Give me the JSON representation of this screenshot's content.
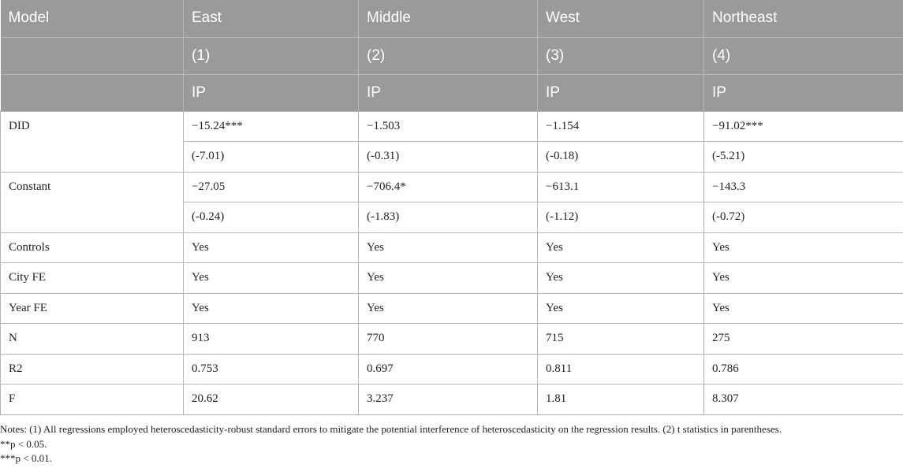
{
  "table": {
    "header_row1": [
      "Model",
      "East",
      "Middle",
      "West",
      "Northeast"
    ],
    "header_row2": [
      "(1)",
      "(2)",
      "(3)",
      "(4)"
    ],
    "header_row3": [
      "IP",
      "IP",
      "IP",
      "IP"
    ],
    "did": {
      "label": "DID",
      "coef": [
        "−15.24***",
        "−1.503",
        "−1.154",
        "−91.02***"
      ],
      "tstat": [
        "(-7.01)",
        "(-0.31)",
        "(-0.18)",
        "(-5.21)"
      ]
    },
    "constant": {
      "label": "Constant",
      "coef": [
        "−27.05",
        "−706.4*",
        "−613.1",
        "−143.3"
      ],
      "tstat": [
        "(-0.24)",
        "(-1.83)",
        "(-1.12)",
        "(-0.72)"
      ]
    },
    "controls": {
      "label": "Controls",
      "values": [
        "Yes",
        "Yes",
        "Yes",
        "Yes"
      ]
    },
    "city_fe": {
      "label": "City FE",
      "values": [
        "Yes",
        "Yes",
        "Yes",
        "Yes"
      ]
    },
    "year_fe": {
      "label": "Year FE",
      "values": [
        "Yes",
        "Yes",
        "Yes",
        "Yes"
      ]
    },
    "n": {
      "label": "N",
      "values": [
        "913",
        "770",
        "715",
        "275"
      ]
    },
    "r2": {
      "label": "R2",
      "values": [
        "0.753",
        "0.697",
        "0.811",
        "0.786"
      ]
    },
    "f": {
      "label": "F",
      "values": [
        "20.62",
        "3.237",
        "1.81",
        "8.307"
      ]
    }
  },
  "notes": {
    "line1": "Notes: (1) All regressions employed heteroscedasticity-robust standard errors to mitigate the potential interference of heteroscedasticity on the regression results. (2) t statistics in parentheses.",
    "line2": "**p < 0.05.",
    "line3": "***p < 0.01."
  }
}
